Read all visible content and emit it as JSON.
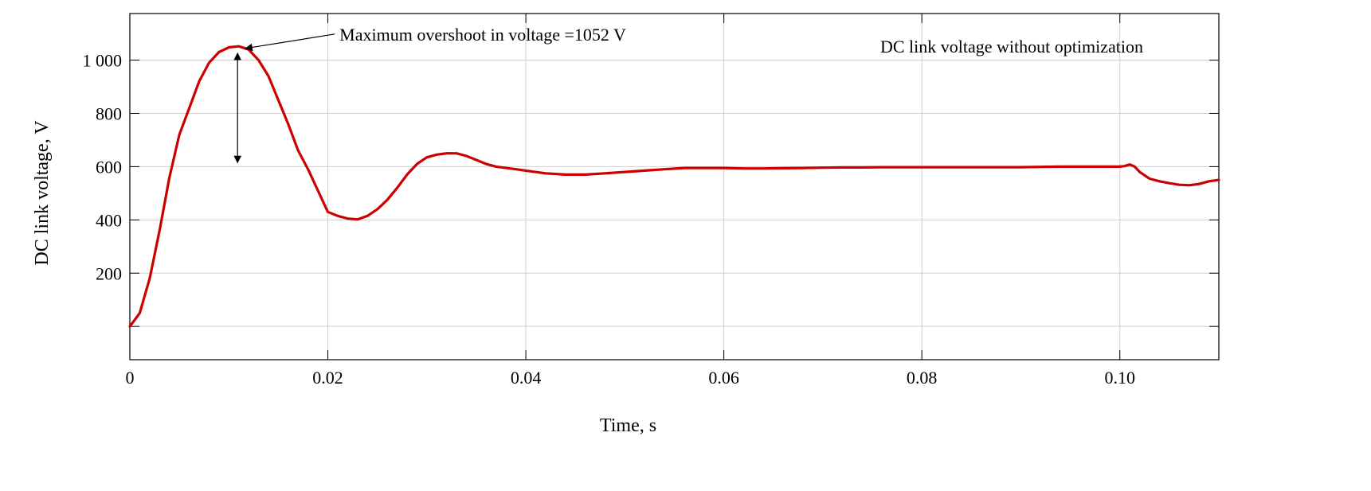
{
  "chart_data": {
    "type": "line",
    "title": "",
    "xlabel": "Time, s",
    "ylabel": "DC link voltage, V",
    "xlim": [
      0,
      0.11
    ],
    "ylim": [
      -125,
      1175
    ],
    "x_ticks": [
      0,
      0.02,
      0.04,
      0.06,
      0.08,
      0.1
    ],
    "x_tick_labels": [
      "0",
      "0.02",
      "0.04",
      "0.06",
      "0.08",
      "0.10"
    ],
    "y_gridlines": [
      0,
      200,
      400,
      600,
      800,
      1000
    ],
    "y_ticks": [
      200,
      400,
      600,
      800,
      1000
    ],
    "y_tick_labels": [
      "200",
      "400",
      "600",
      "800",
      "1 000"
    ],
    "grid": true,
    "legend_text": "DC link voltage without optimization",
    "annotation": {
      "text": "Maximum overshoot in voltage =1052 V",
      "x": 0.0112,
      "y": 1050
    },
    "series": [
      {
        "color": "#cc0000",
        "x": [
          0,
          0.001,
          0.002,
          0.003,
          0.004,
          0.005,
          0.006,
          0.007,
          0.008,
          0.009,
          0.01,
          0.011,
          0.012,
          0.013,
          0.014,
          0.015,
          0.016,
          0.017,
          0.018,
          0.019,
          0.02,
          0.021,
          0.022,
          0.023,
          0.024,
          0.025,
          0.026,
          0.027,
          0.028,
          0.029,
          0.03,
          0.031,
          0.032,
          0.033,
          0.034,
          0.035,
          0.036,
          0.037,
          0.038,
          0.039,
          0.04,
          0.042,
          0.044,
          0.046,
          0.048,
          0.05,
          0.052,
          0.054,
          0.056,
          0.058,
          0.06,
          0.062,
          0.064,
          0.066,
          0.068,
          0.07,
          0.072,
          0.074,
          0.076,
          0.078,
          0.08,
          0.082,
          0.084,
          0.086,
          0.088,
          0.09,
          0.092,
          0.094,
          0.096,
          0.098,
          0.1,
          0.1005,
          0.101,
          0.1015,
          0.102,
          0.103,
          0.104,
          0.105,
          0.106,
          0.107,
          0.108,
          0.109,
          0.11
        ],
        "y": [
          0,
          50,
          180,
          360,
          560,
          720,
          820,
          920,
          990,
          1030,
          1048,
          1052,
          1040,
          1000,
          940,
          850,
          760,
          660,
          590,
          510,
          430,
          415,
          405,
          402,
          415,
          440,
          475,
          520,
          570,
          610,
          635,
          645,
          650,
          650,
          640,
          625,
          610,
          600,
          595,
          590,
          585,
          575,
          570,
          570,
          575,
          580,
          585,
          590,
          595,
          595,
          595,
          593,
          593,
          594,
          595,
          596,
          597,
          597,
          598,
          598,
          598,
          598,
          598,
          598,
          598,
          598,
          599,
          600,
          600,
          600,
          600,
          602,
          608,
          600,
          580,
          555,
          545,
          538,
          532,
          530,
          535,
          545,
          550
        ]
      }
    ]
  }
}
